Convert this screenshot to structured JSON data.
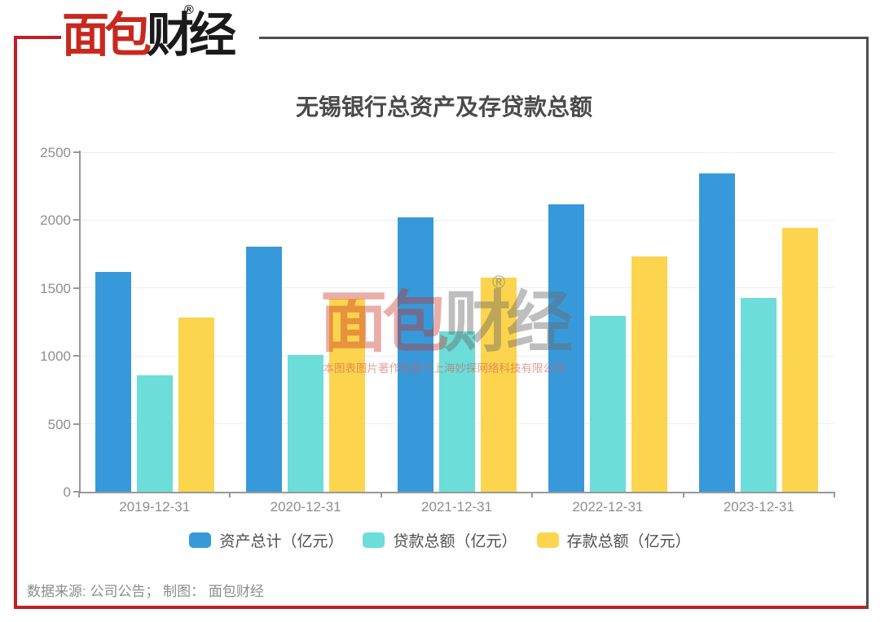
{
  "brand": {
    "logo_left": "面包",
    "logo_right": "财经",
    "registered_mark": "®"
  },
  "chart_data": {
    "type": "bar",
    "title": "无锡银行总资产及存贷款总额",
    "categories": [
      "2019-12-31",
      "2020-12-31",
      "2021-12-31",
      "2022-12-31",
      "2023-12-31"
    ],
    "series": [
      {
        "name": "资产总计（亿元）",
        "color": "#3899DA",
        "values": [
          1619,
          1802,
          2021,
          2116,
          2346
        ]
      },
      {
        "name": "贷款总额（亿元）",
        "color": "#6CDDD8",
        "values": [
          856,
          1005,
          1180,
          1293,
          1428
        ]
      },
      {
        "name": "存款总额（亿元）",
        "color": "#FCD44E",
        "values": [
          1284,
          1420,
          1574,
          1733,
          1941
        ]
      }
    ],
    "xlabel": "",
    "ylabel": "",
    "ylim": [
      0,
      2500
    ],
    "ytick_step": 500,
    "grid": true,
    "legend_position": "bottom"
  },
  "watermark": {
    "logo_left": "面包",
    "logo_right": "财经",
    "registered_mark": "®",
    "copyright_text": "本图表图片著作权属于上海妙探网络科技有限公司"
  },
  "footer": {
    "source_text": "数据来源: 公司公告； 制图： 面包财经"
  },
  "colors": {
    "brand_red": "#BE2026",
    "logo_red": "#C8281E",
    "frame_gray": "#4E4E4E",
    "series_assets": "#3899DA",
    "series_loans": "#6CDDD8",
    "series_deposits": "#FCD44E",
    "axis_line": "#999999",
    "grid_line": "#E9EDF6",
    "axis_text": "#8E8E8E",
    "title_text": "#4A4A4A",
    "legend_text": "#4F4F4F",
    "footer_text": "#8C8C8C"
  }
}
